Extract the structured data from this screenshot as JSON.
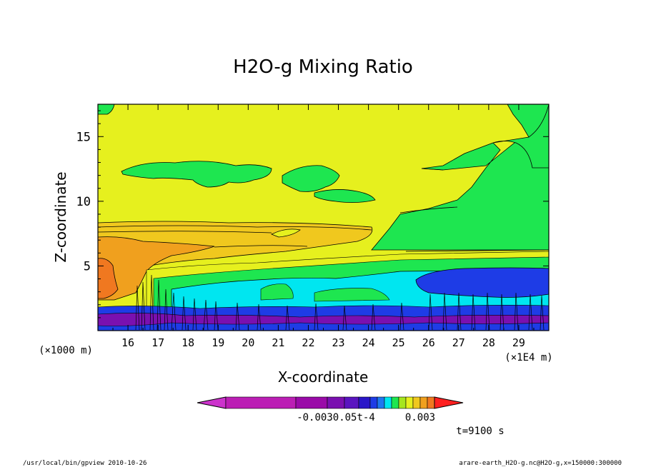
{
  "chart_data": {
    "type": "contour",
    "title": "H2O-g Mixing Ratio",
    "xlabel": "X-coordinate",
    "ylabel": "Z-coordinate",
    "x_unit_label": "(×1E4 m)",
    "y_unit_label": "(×1000 m)",
    "xlim": [
      15,
      30
    ],
    "ylim": [
      0,
      17.5
    ],
    "x_ticks": [
      "16",
      "17",
      "18",
      "19",
      "20",
      "21",
      "22",
      "23",
      "24",
      "25",
      "26",
      "27",
      "28",
      "29"
    ],
    "y_ticks": [
      "5",
      "10",
      "15"
    ],
    "colorbar": {
      "label_left": "-0.003",
      "label_mid": "3.05e-4",
      "label_right": "0.003",
      "overlap_text": "-0.0030.05t-4",
      "colors": [
        "#cc33cc",
        "#bb1eb4",
        "#9a0aa8",
        "#7a10b0",
        "#5a14c0",
        "#2a16c8",
        "#1e3ce6",
        "#1e78f0",
        "#00e6f0",
        "#1ee650",
        "#a6e61e",
        "#e6f01e",
        "#f0c81e",
        "#f0a01e",
        "#f07820",
        "#ff2020"
      ]
    },
    "time_label": "t=9100 s",
    "footer_left": "/usr/local/bin/gpview  2010-10-26",
    "footer_right": "arare-earth_H2O-g.nc@H2O-g,x=150000:300000",
    "regions": [
      {
        "name": "upper-yellow",
        "color": "#e6f01e"
      },
      {
        "name": "upper-green",
        "color": "#1ee650"
      },
      {
        "name": "light-orange",
        "color": "#f0c81e"
      },
      {
        "name": "orange",
        "color": "#f0a01e"
      },
      {
        "name": "dark-orange",
        "color": "#f07820"
      },
      {
        "name": "cyan",
        "color": "#00e6f0"
      },
      {
        "name": "blue",
        "color": "#1e3ce6"
      },
      {
        "name": "purple",
        "color": "#7a10b0"
      }
    ],
    "grid": false
  }
}
